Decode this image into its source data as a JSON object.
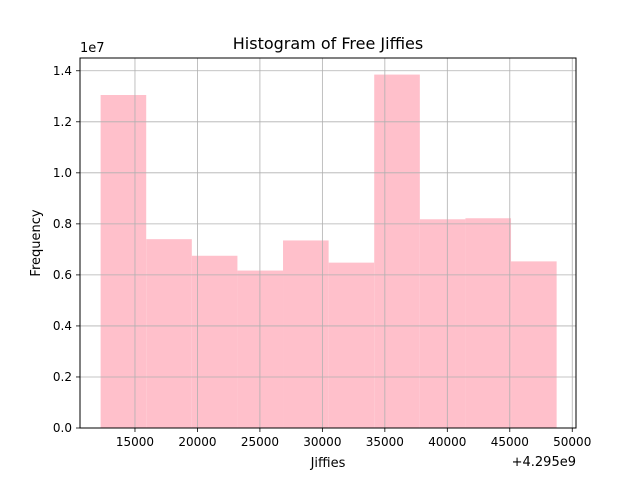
{
  "chart_data": {
    "type": "bar",
    "title": "Histogram of Free Jiffies",
    "xlabel": "Jiffies",
    "ylabel": "Frequency",
    "x_offset_label": "+4.295e9",
    "y_scale_label": "1e7",
    "bar_color": "#ffc0cb",
    "grid": true,
    "xlim": [
      10600,
      50300
    ],
    "ylim": [
      0,
      14500000
    ],
    "x_ticks": [
      15000,
      20000,
      25000,
      30000,
      35000,
      40000,
      45000,
      50000
    ],
    "x_tick_labels": [
      "15000",
      "20000",
      "25000",
      "30000",
      "35000",
      "40000",
      "45000",
      "50000"
    ],
    "y_ticks": [
      0,
      2000000,
      4000000,
      6000000,
      8000000,
      10000000,
      12000000,
      14000000
    ],
    "y_tick_labels": [
      "0.0",
      "0.2",
      "0.4",
      "0.6",
      "0.8",
      "1.0",
      "1.2",
      "1.4"
    ],
    "bins": [
      {
        "x0": 12250,
        "x1": 15900,
        "value": 13050000
      },
      {
        "x0": 15900,
        "x1": 19550,
        "value": 7400000
      },
      {
        "x0": 19550,
        "x1": 23200,
        "value": 6750000
      },
      {
        "x0": 23200,
        "x1": 26850,
        "value": 6170000
      },
      {
        "x0": 26850,
        "x1": 30500,
        "value": 7350000
      },
      {
        "x0": 30500,
        "x1": 34150,
        "value": 6480000
      },
      {
        "x0": 34150,
        "x1": 37800,
        "value": 13850000
      },
      {
        "x0": 37800,
        "x1": 41450,
        "value": 8180000
      },
      {
        "x0": 41450,
        "x1": 45100,
        "value": 8220000
      },
      {
        "x0": 45100,
        "x1": 48750,
        "value": 6530000
      }
    ]
  }
}
